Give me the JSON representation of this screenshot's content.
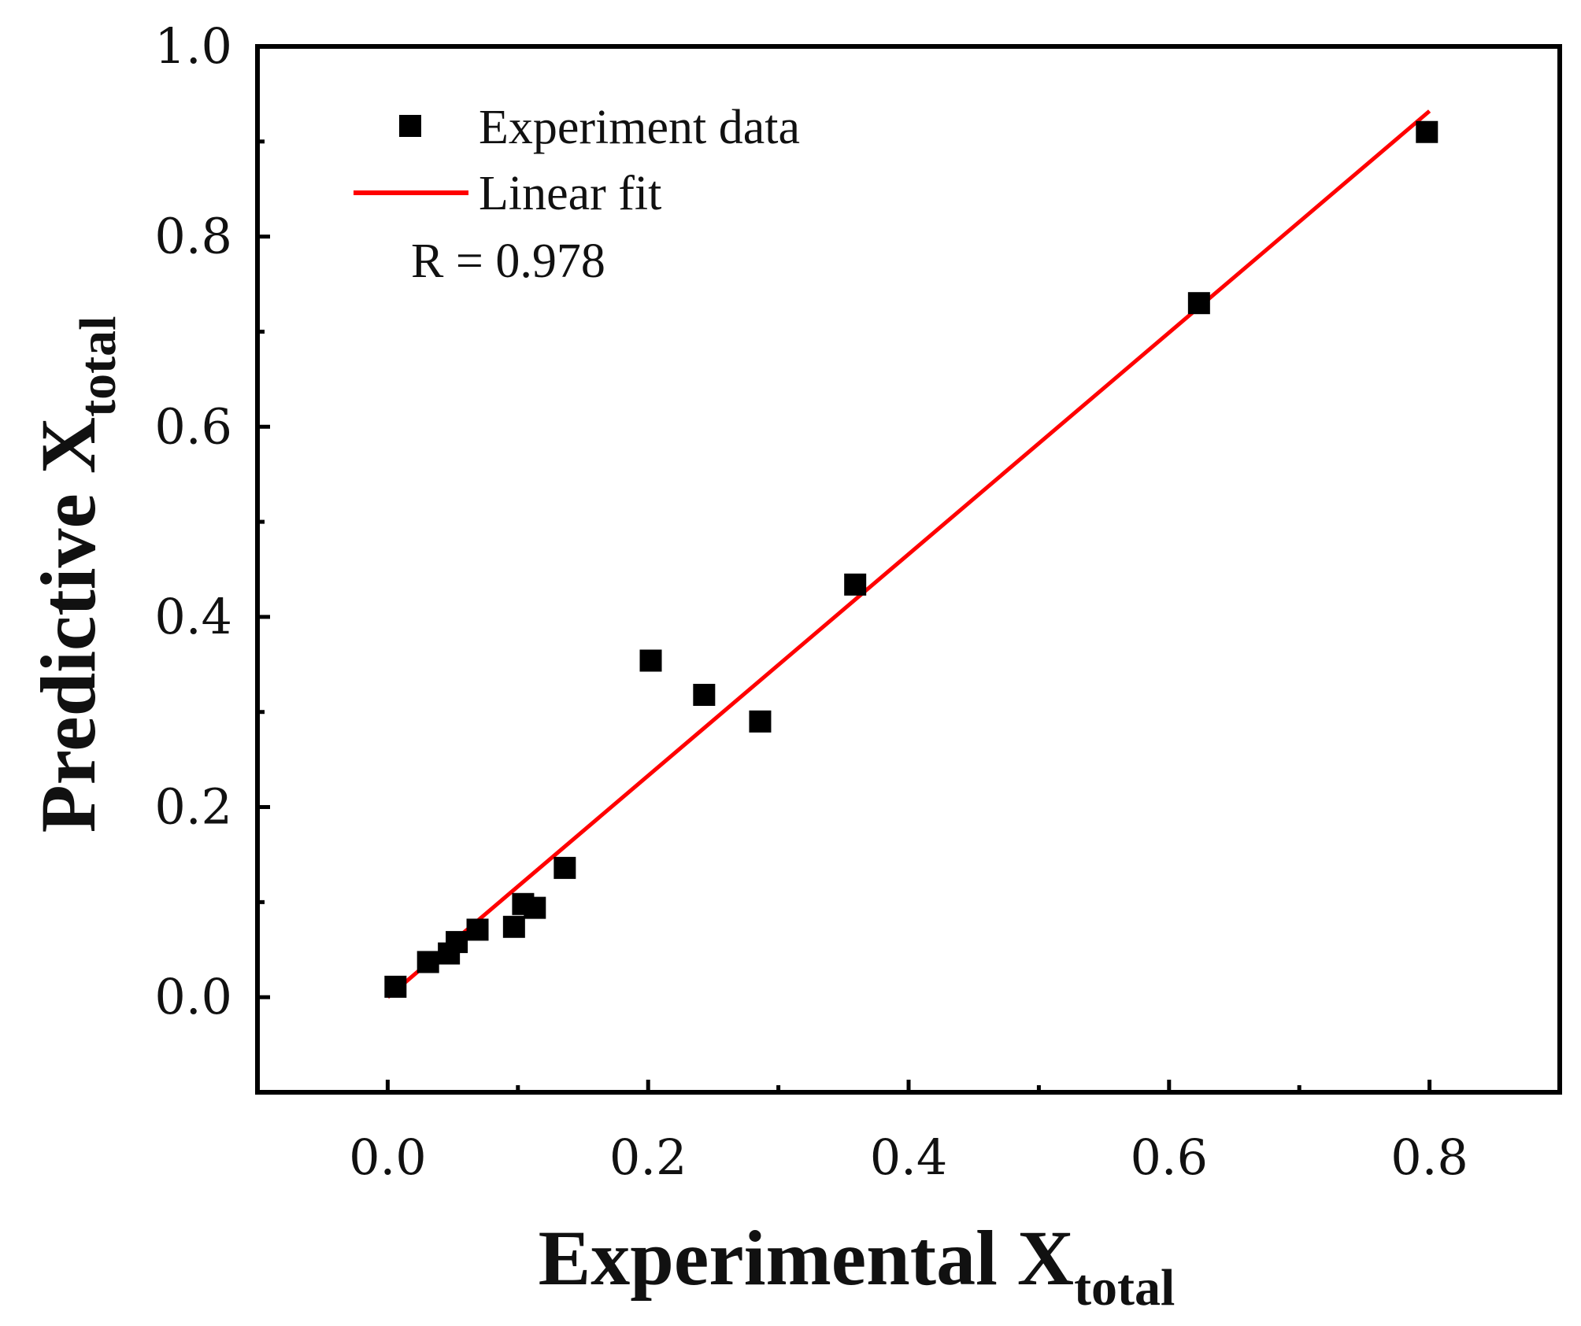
{
  "chart_data": {
    "type": "scatter",
    "title": "",
    "xlabel": {
      "main": "Experimental X",
      "sub": "total"
    },
    "ylabel": {
      "main": "Predictive X",
      "sub": "total"
    },
    "xlim": [
      -0.1,
      0.9
    ],
    "ylim": [
      -0.1,
      1.0
    ],
    "x_ticks": [
      "0.0",
      "0.2",
      "0.4",
      "0.6",
      "0.8"
    ],
    "x_tick_values": [
      0.0,
      0.2,
      0.4,
      0.6,
      0.8
    ],
    "y_ticks": [
      "0.0",
      "0.2",
      "0.4",
      "0.6",
      "0.8",
      "1.0"
    ],
    "y_tick_values": [
      0.0,
      0.2,
      0.4,
      0.6,
      0.8,
      1.0
    ],
    "grid": false,
    "series": [
      {
        "name": "Experiment data",
        "kind": "scatter",
        "color": "#000000",
        "x": [
          0.006,
          0.031,
          0.047,
          0.053,
          0.069,
          0.097,
          0.104,
          0.113,
          0.136,
          0.202,
          0.243,
          0.286,
          0.359,
          0.623,
          0.798
        ],
        "y": [
          0.011,
          0.037,
          0.046,
          0.058,
          0.071,
          0.074,
          0.098,
          0.094,
          0.136,
          0.354,
          0.318,
          0.29,
          0.434,
          0.73,
          0.91
        ]
      },
      {
        "name": "Linear fit",
        "kind": "line",
        "color": "#ff0000",
        "x": [
          0.0,
          0.8
        ],
        "y": [
          0.0,
          0.932
        ]
      }
    ],
    "annotation": "R = 0.978",
    "legend_position": "top-left"
  }
}
